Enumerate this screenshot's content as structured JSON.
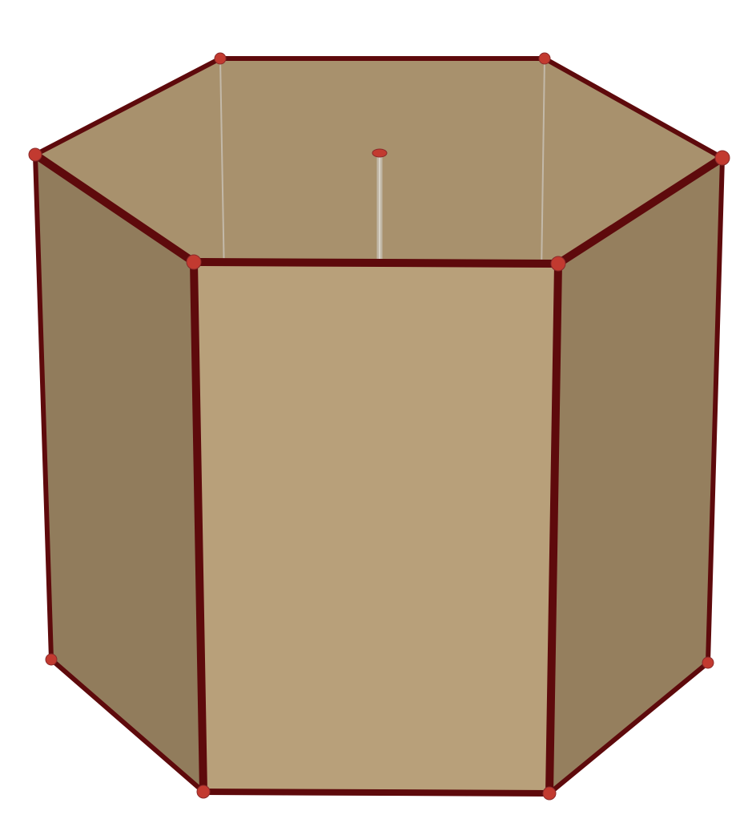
{
  "figure": {
    "subject": "hexagonal prism",
    "vertex_count": 12,
    "edge_count": 18,
    "face_count": 8,
    "shows_axis": true
  },
  "colors": {
    "background": "#ffffff",
    "front_face": "#b8a07a",
    "left_face": "#917c5c",
    "right_face": "#957f5e",
    "top_face": "#a8916d",
    "edge": "#5e0a0c",
    "edge_highlight": "#8a2a2a",
    "vertex": "#c23a30",
    "hidden_line": "#c9c3b8",
    "hidden_point": "#b0aca6"
  }
}
